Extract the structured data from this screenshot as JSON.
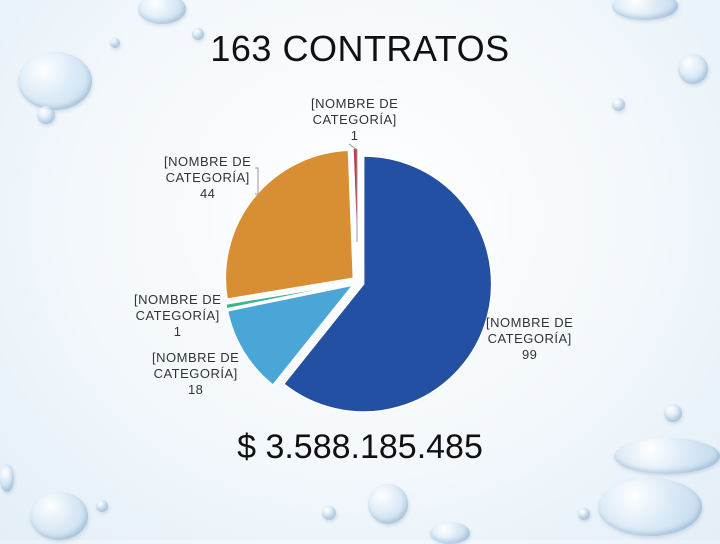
{
  "title": "163 CONTRATOS",
  "total": "$ 3.588.185.485",
  "chart_data": {
    "type": "pie",
    "categories": [
      "[NOMBRE DE CATEGORÍA]",
      "[NOMBRE DE CATEGORÍA]",
      "[NOMBRE DE CATEGORÍA]",
      "[NOMBRE DE CATEGORÍA]",
      "[NOMBRE DE CATEGORÍA]"
    ],
    "values": [
      99,
      18,
      1,
      44,
      1
    ],
    "colors": [
      "#2450a4",
      "#4aa6d6",
      "#3fb38a",
      "#d88f33",
      "#c0394a"
    ],
    "title": "163 CONTRATOS",
    "labels": [
      {
        "line1": "[NOMBRE DE",
        "line2": "CATEGORÍA]",
        "value": "99"
      },
      {
        "line1": "[NOMBRE DE",
        "line2": "CATEGORÍA]",
        "value": "18"
      },
      {
        "line1": "[NOMBRE DE",
        "line2": "CATEGORÍA]",
        "value": "1"
      },
      {
        "line1": "[NOMBRE DE",
        "line2": "CATEGORÍA]",
        "value": "44"
      },
      {
        "line1": "[NOMBRE DE",
        "line2": "CATEGORÍA]",
        "value": "1"
      }
    ]
  }
}
